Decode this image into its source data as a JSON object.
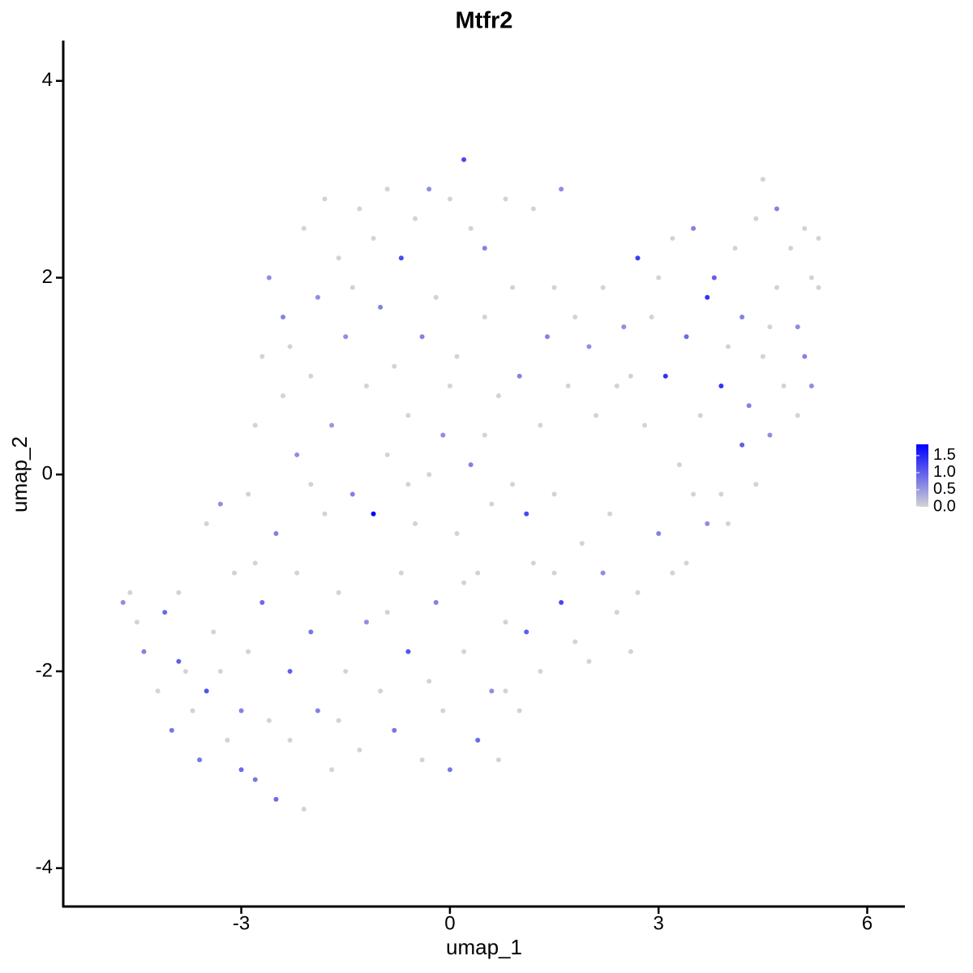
{
  "chart_data": {
    "type": "scatter",
    "title": "Mtfr2",
    "x_label": "umap_1",
    "y_label": "umap_2",
    "xlim": [
      -5.56,
      6.53
    ],
    "ylim": [
      -4.39,
      4.41
    ],
    "xticks": [
      -3,
      0,
      3,
      6
    ],
    "yticks": [
      -4,
      -2,
      0,
      2,
      4
    ],
    "colors": [
      "#d3d3d3",
      "#0000ff"
    ],
    "colorlim": [
      0,
      1.83
    ],
    "colorticks": [
      1.5,
      {
        "value": 1,
        "label": "1.0"
      },
      0.5,
      {
        "value": 0,
        "label": "0.0"
      }
    ],
    "x": [
      -4.7,
      -4.6,
      -4.5,
      -4.4,
      -4.2,
      -4.1,
      -4.0,
      -3.9,
      -3.8,
      -3.7,
      -3.6,
      -3.5,
      -3.5,
      -3.4,
      -3.3,
      -3.2,
      -3.1,
      -3.0,
      -3.0,
      -2.9,
      -2.9,
      -2.8,
      -2.8,
      -2.7,
      -2.7,
      -2.6,
      -2.6,
      -2.5,
      -2.5,
      -2.4,
      -2.4,
      -2.3,
      -2.3,
      -2.2,
      -2.2,
      -2.1,
      -2.1,
      -2.0,
      -2.0,
      -1.9,
      -1.9,
      -1.8,
      -1.8,
      -1.7,
      -1.7,
      -1.6,
      -1.6,
      -1.5,
      -1.5,
      -1.4,
      -1.3,
      -1.3,
      -1.2,
      -1.2,
      -1.1,
      -1.0,
      -1.0,
      -0.9,
      -0.9,
      -0.8,
      -0.8,
      -0.7,
      -0.7,
      -0.6,
      -0.6,
      -0.5,
      -0.5,
      -0.4,
      -0.4,
      -0.3,
      -0.3,
      -0.2,
      -0.2,
      -0.1,
      -0.1,
      0,
      0,
      0.1,
      0.1,
      0.2,
      0.2,
      0.3,
      0.3,
      0.4,
      0.4,
      0.5,
      0.5,
      0.6,
      0.6,
      0.7,
      0.7,
      0.8,
      0.8,
      0.9,
      0.9,
      1.0,
      1.0,
      1.1,
      1.1,
      1.2,
      1.3,
      1.3,
      1.4,
      1.5,
      1.5,
      1.6,
      1.6,
      1.7,
      1.8,
      1.8,
      1.9,
      2.0,
      2.0,
      2.1,
      2.2,
      2.2,
      2.4,
      2.4,
      2.5,
      2.6,
      2.7,
      2.7,
      2.8,
      2.9,
      3.0,
      3.1,
      3.2,
      3.2,
      3.3,
      3.4,
      3.5,
      3.5,
      3.6,
      3.7,
      3.7,
      3.8,
      3.9,
      3.9,
      4.0,
      4.1,
      4.2,
      4.2,
      4.3,
      4.4,
      4.4,
      4.5,
      4.5,
      4.6,
      4.7,
      4.7,
      4.8,
      4.9,
      5.0,
      5.0,
      5.1,
      5.1,
      5.2,
      5.2,
      5.3,
      5.3,
      -3.9,
      -3.3,
      -2.8,
      -2.3,
      -2.0,
      -1.6,
      -1.4,
      -1.1,
      -0.9,
      -0.6,
      -0.3,
      0.0,
      0.2,
      0.5,
      0.8,
      1.2,
      1.5,
      2.3,
      2.6,
      3.0,
      3.4,
      4.0,
      4.6,
      4.9
    ],
    "values": [
      -1.3,
      -1.2,
      -1.5,
      -1.8,
      -2.2,
      -1.4,
      -2.6,
      -1.9,
      -2.0,
      -2.4,
      -2.9,
      -0.5,
      -2.2,
      -1.6,
      -0.3,
      -2.7,
      -1.0,
      -3.0,
      -2.4,
      -0.2,
      -1.8,
      -3.1,
      0.5,
      -1.3,
      1.2,
      -2.5,
      2.0,
      -0.6,
      -3.3,
      0.8,
      1.6,
      -2.0,
      -2.7,
      -1.0,
      0.2,
      2.5,
      -3.4,
      -1.6,
      1.0,
      -2.4,
      1.8,
      -0.4,
      2.8,
      0.5,
      -3.0,
      -1.2,
      2.2,
      1.4,
      -2.0,
      -0.2,
      2.7,
      -2.8,
      0.9,
      -1.5,
      -0.4,
      1.7,
      -2.2,
      2.9,
      0.2,
      -2.6,
      1.1,
      -1.0,
      2.2,
      0.6,
      -1.8,
      2.6,
      -0.5,
      1.4,
      -2.9,
      0.0,
      2.9,
      -1.3,
      1.8,
      -2.4,
      0.4,
      2.8,
      -3.0,
      -0.6,
      1.2,
      3.2,
      -1.8,
      0.1,
      2.5,
      -2.7,
      -1.0,
      1.6,
      2.3,
      -2.2,
      -0.3,
      0.8,
      -2.9,
      2.8,
      -1.5,
      -0.1,
      1.9,
      -2.4,
      1.0,
      -0.4,
      -1.6,
      2.7,
      0.5,
      -2.0,
      1.4,
      -1.0,
      -0.2,
      -1.3,
      2.9,
      0.9,
      -1.7,
      1.6,
      -0.7,
      1.3,
      -1.9,
      0.6,
      1.9,
      -1.0,
      -1.4,
      0.9,
      1.5,
      -1.8,
      2.2,
      -1.2,
      0.5,
      1.6,
      -0.6,
      1.0,
      2.4,
      -1.0,
      0.1,
      1.4,
      -0.2,
      2.5,
      0.6,
      -0.5,
      1.8,
      2.0,
      -0.2,
      0.9,
      1.3,
      2.3,
      0.3,
      1.6,
      0.7,
      -0.1,
      2.6,
      1.2,
      3.0,
      0.4,
      2.7,
      1.9,
      0.9,
      2.3,
      1.5,
      0.6,
      2.5,
      1.2,
      2.0,
      0.9,
      2.4,
      1.9,
      -1.2,
      -2.0,
      -0.9,
      1.3,
      -0.1,
      -2.5,
      1.9,
      2.4,
      -1.4,
      -0.1,
      -2.1,
      0.9,
      -1.1,
      0.4,
      -2.2,
      -0.9,
      1.9,
      -0.4,
      1.0,
      2.0,
      -0.9,
      -0.5,
      1.5,
      2.8
    ],
    "color_values": [
      0.6,
      0,
      0,
      0.7,
      0,
      0.9,
      0.8,
      1.0,
      0,
      0,
      0.8,
      0,
      1.1,
      0,
      0.6,
      0,
      0,
      0.9,
      0.7,
      0,
      0,
      0.8,
      0,
      0.9,
      0,
      0,
      0.6,
      0.7,
      0.9,
      0,
      0.7,
      1.0,
      0,
      0,
      0.6,
      0,
      0,
      0.8,
      0,
      0.7,
      0.6,
      0,
      0,
      0.5,
      0,
      0,
      0,
      0.6,
      0,
      0.7,
      0,
      0,
      0,
      0.6,
      1.8,
      0.7,
      0,
      0,
      0,
      0.8,
      0,
      0,
      1.2,
      0,
      1.1,
      0,
      0,
      0.7,
      0,
      0,
      0.6,
      0.7,
      0,
      0,
      0.6,
      0,
      0.8,
      0,
      0,
      1.2,
      0,
      0.7,
      0,
      0.9,
      0,
      0,
      0.7,
      0.6,
      0,
      0,
      0,
      0,
      0,
      0,
      0,
      0,
      0.7,
      1.2,
      1.0,
      0,
      0,
      0,
      0.7,
      0,
      0,
      1.2,
      0.6,
      0,
      0,
      0,
      0,
      0.6,
      0,
      0,
      0,
      0.6,
      0,
      0,
      0.6,
      0,
      1.3,
      0,
      0,
      0,
      0.7,
      1.4,
      0,
      0,
      0,
      0.9,
      0,
      0.7,
      0,
      0.6,
      1.4,
      1.0,
      0,
      1.4,
      0,
      0,
      1.0,
      0.7,
      0.7,
      0,
      0,
      0,
      0,
      0.6,
      0.7,
      0,
      0,
      0,
      0.6,
      0,
      0,
      0.7,
      0,
      0.6,
      0,
      0,
      0,
      0,
      0,
      0,
      0,
      0,
      0,
      0,
      0,
      0,
      0,
      0,
      0,
      0,
      0,
      0,
      0,
      0,
      0,
      0,
      0,
      0,
      0
    ]
  }
}
